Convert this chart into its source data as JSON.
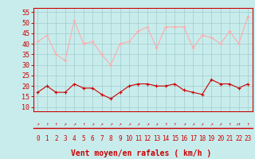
{
  "hours": [
    0,
    1,
    2,
    3,
    4,
    5,
    6,
    7,
    8,
    9,
    10,
    11,
    12,
    13,
    14,
    15,
    16,
    17,
    18,
    19,
    20,
    21,
    22,
    23
  ],
  "wind_avg": [
    17,
    20,
    17,
    17,
    21,
    19,
    19,
    16,
    14,
    17,
    20,
    21,
    21,
    20,
    20,
    21,
    18,
    17,
    16,
    23,
    21,
    21,
    19,
    21
  ],
  "wind_gust": [
    41,
    44,
    35,
    32,
    51,
    40,
    41,
    35,
    30,
    40,
    41,
    46,
    48,
    38,
    48,
    48,
    48,
    38,
    44,
    43,
    40,
    46,
    40,
    53
  ],
  "bg_color": "#c8ecec",
  "grid_color": "#a0cccc",
  "avg_color": "#cc0000",
  "gust_color": "#ffaaaa",
  "xlabel": "Vent moyen/en rafales ( km/h )",
  "yticks": [
    10,
    15,
    20,
    25,
    30,
    35,
    40,
    45,
    50,
    55
  ],
  "ylim": [
    8,
    57
  ],
  "xlim": [
    -0.5,
    23.5
  ],
  "tick_color": "#cc0000",
  "axis_color": "#cc0000",
  "arrow_symbols": [
    "↗",
    "↑",
    "↑",
    "↗",
    "↗",
    "↑",
    "↗",
    "↗",
    "↗",
    "↗",
    "↗",
    "↗",
    "↗",
    "↗",
    "↑",
    "↑",
    "↗",
    "↗",
    "↗",
    "↗",
    "↗",
    "↑",
    "↗↑",
    "↑"
  ]
}
